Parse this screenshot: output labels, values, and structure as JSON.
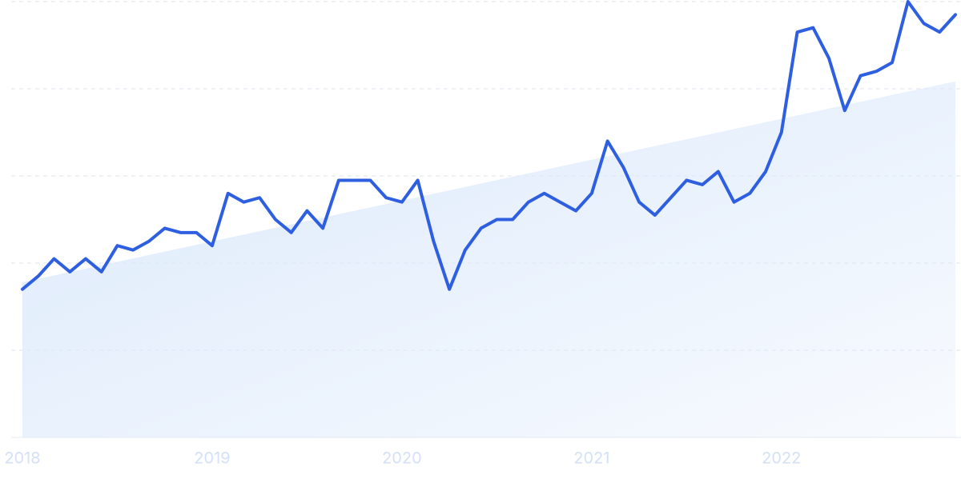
{
  "chart_data": {
    "type": "line",
    "categories": [
      "2018",
      null,
      null,
      null,
      null,
      null,
      null,
      null,
      null,
      null,
      null,
      null,
      "2019",
      null,
      null,
      null,
      null,
      null,
      null,
      null,
      null,
      null,
      null,
      null,
      "2020",
      null,
      null,
      null,
      null,
      null,
      null,
      null,
      null,
      null,
      null,
      null,
      "2021",
      null,
      null,
      null,
      null,
      null,
      null,
      null,
      null,
      null,
      null,
      null,
      "2022",
      null,
      null,
      null,
      null,
      null,
      null,
      null,
      null,
      null,
      null,
      null
    ],
    "series": [
      {
        "color": "#2e5fe0",
        "values": [
          34,
          37,
          41,
          38,
          41,
          38,
          44,
          43,
          45,
          48,
          47,
          47,
          44,
          56,
          54,
          55,
          50,
          47,
          52,
          48,
          59,
          59,
          59,
          55,
          54,
          59,
          45,
          34,
          43,
          48,
          50,
          50,
          54,
          56,
          54,
          52,
          56,
          68,
          62,
          54,
          51,
          55,
          59,
          58,
          61,
          54,
          56,
          61,
          70,
          93,
          94,
          87,
          75,
          83,
          84,
          86,
          100,
          95,
          93,
          97
        ]
      }
    ],
    "trend": {
      "color": "#dbe9fb",
      "values": [
        35.6,
        81.7
      ]
    },
    "ylim": [
      0,
      100
    ],
    "yticks": [
      0,
      20,
      40,
      60,
      80,
      100
    ],
    "grid": true
  }
}
